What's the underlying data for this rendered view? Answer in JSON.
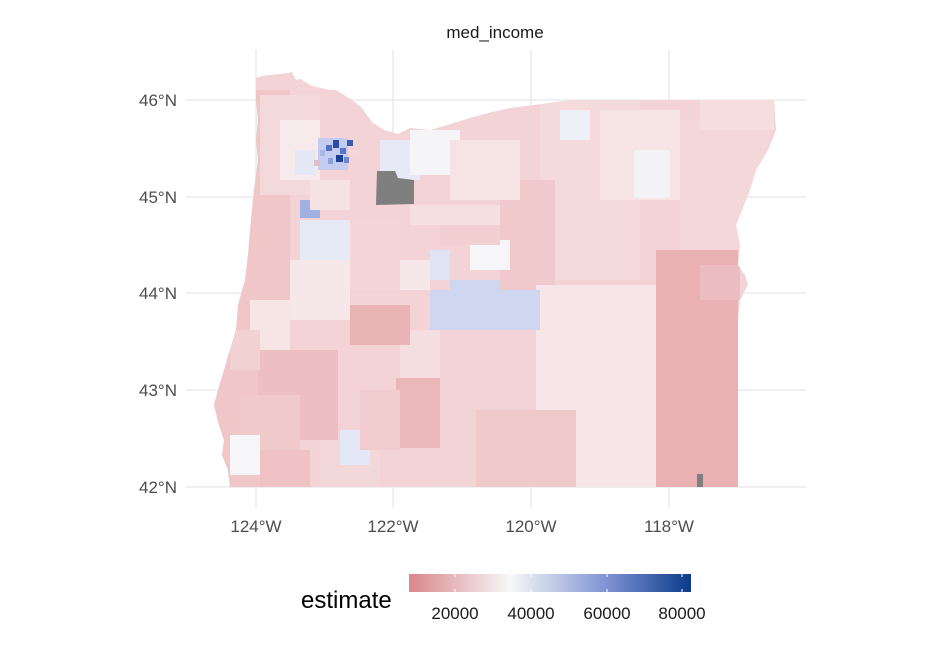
{
  "panel_title": "med_income",
  "axes": {
    "lat_labels": [
      "46°N",
      "45°N",
      "44°N",
      "43°N",
      "42°N"
    ],
    "lon_labels": [
      "124°W",
      "122°W",
      "120°W",
      "118°W"
    ]
  },
  "legend": {
    "title": "estimate",
    "tick_labels": [
      "20000",
      "40000",
      "60000",
      "80000"
    ],
    "scale": {
      "min": 10000,
      "mid": 40000,
      "max": 85000
    },
    "colors": {
      "low": "#d9868b",
      "mid": "#f7f7f7",
      "high": "#0a3a8a"
    },
    "na_color": "#7f7f7f"
  },
  "map": {
    "region": "Oregon census tracts",
    "gridline_color": "#ebebeb",
    "background": "#ffffff"
  }
}
